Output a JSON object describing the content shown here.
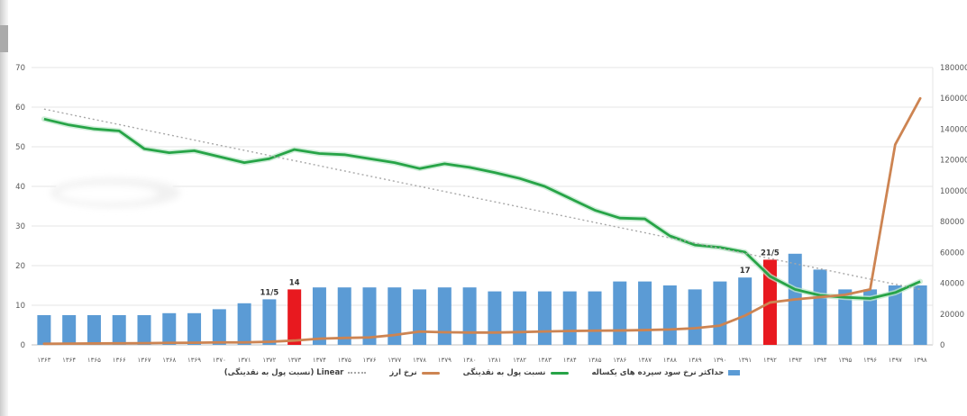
{
  "chart_data": {
    "type": "combo-bar-line",
    "title": "",
    "categories": [
      "۱۳۶۳",
      "۱۳۶۴",
      "۱۳۶۵",
      "۱۳۶۶",
      "۱۳۶۷",
      "۱۳۶۸",
      "۱۳۶۹",
      "۱۳۷۰",
      "۱۳۷۱",
      "۱۳۷۲",
      "۱۳۷۳",
      "۱۳۷۴",
      "۱۳۷۵",
      "۱۳۷۶",
      "۱۳۷۷",
      "۱۳۷۸",
      "۱۳۷۹",
      "۱۳۸۰",
      "۱۳۸۱",
      "۱۳۸۲",
      "۱۳۸۳",
      "۱۳۸۴",
      "۱۳۸۵",
      "۱۳۸۶",
      "۱۳۸۷",
      "۱۳۸۸",
      "۱۳۸۹",
      "۱۳۹۰",
      "۱۳۹۱",
      "۱۳۹۲",
      "۱۳۹۳",
      "۱۳۹۴",
      "۱۳۹۵",
      "۱۳۹۶",
      "۱۳۹۷",
      "۱۳۹۸"
    ],
    "axes": {
      "left": {
        "min": 0,
        "max": 70,
        "step": 10,
        "ticks": [
          "0",
          "10",
          "20",
          "30",
          "40",
          "50",
          "60",
          "70"
        ]
      },
      "right": {
        "min": 0,
        "max": 180000,
        "step": 20000,
        "ticks": [
          "0",
          "20000",
          "40000",
          "60000",
          "80000",
          "100000",
          "120000",
          "140000",
          "160000",
          "180000"
        ]
      }
    },
    "series": [
      {
        "name": "حداکثر نرخ سود سپرده های یکساله",
        "type": "bar",
        "axis": "left",
        "color": "#5b9bd5",
        "highlight_color": "#e8191f",
        "highlight_indices": [
          10,
          29
        ],
        "values": [
          7.5,
          7.5,
          7.5,
          7.5,
          7.5,
          8,
          8,
          9,
          10.5,
          11.5,
          14,
          14.5,
          14.5,
          14.5,
          14.5,
          14,
          14.5,
          14.5,
          13.5,
          13.5,
          13.5,
          13.5,
          13.5,
          16,
          16,
          15,
          14,
          16,
          17,
          21.5,
          23,
          19,
          14,
          14,
          15,
          15
        ]
      },
      {
        "name": "نسبت پول به نقدینگی",
        "type": "line",
        "axis": "left",
        "color": "#27a447",
        "halo_color": "#c2e8cd",
        "values": [
          57,
          55.5,
          54.5,
          54,
          49.5,
          48.5,
          49,
          47.5,
          46,
          47,
          49.3,
          48.3,
          48,
          47,
          46,
          44.5,
          45.7,
          44.8,
          43.5,
          42,
          40,
          37,
          34,
          32,
          31.8,
          27.5,
          25.2,
          24.6,
          23.4,
          17.3,
          14,
          12.5,
          12,
          11.7,
          13.2,
          16
        ]
      },
      {
        "name": "نرخ ارز",
        "type": "line",
        "axis": "right",
        "color": "#cd8452",
        "values": [
          700,
          800,
          900,
          1000,
          1100,
          1300,
          1400,
          1600,
          1600,
          2000,
          2800,
          4000,
          4500,
          4800,
          6400,
          8600,
          8200,
          8000,
          8000,
          8300,
          8700,
          9000,
          9200,
          9300,
          9600,
          10000,
          10800,
          12500,
          19000,
          27500,
          29500,
          31000,
          32500,
          36000,
          130000,
          160000
        ]
      },
      {
        "name": "Linear (نسبت پول به نقدینگی)",
        "type": "trendline",
        "axis": "left",
        "color": "#a8a8a8",
        "start": 59.5,
        "end": 14
      }
    ],
    "annotations": [
      {
        "index": 9,
        "label": "11/5"
      },
      {
        "index": 10,
        "label": "14"
      },
      {
        "index": 28,
        "label": "17"
      },
      {
        "index": 29,
        "label": "21/5"
      }
    ],
    "legend_position": "bottom",
    "grid": true,
    "grid_color": "#e4e4e4",
    "baseline_color": "#c2c2c2"
  }
}
